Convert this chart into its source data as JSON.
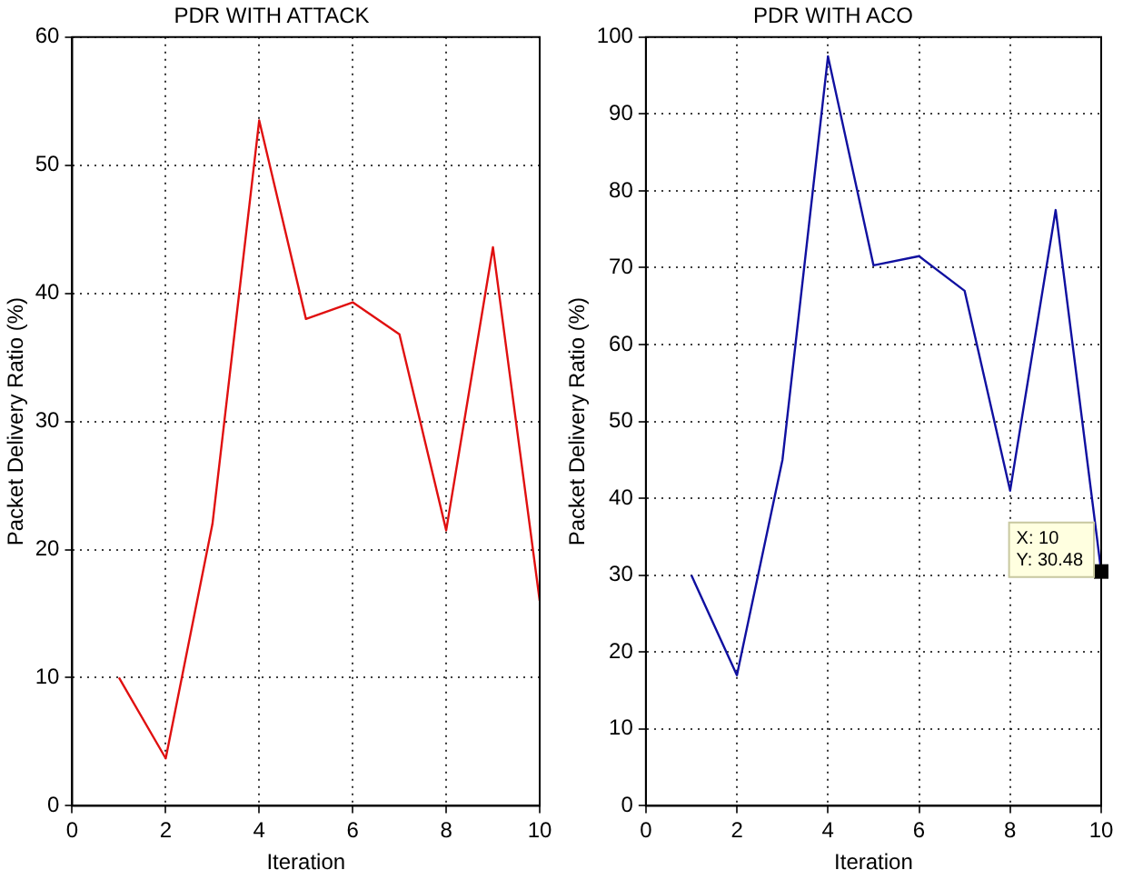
{
  "chart_data": [
    {
      "type": "line",
      "title": "PDR WITH ATTACK",
      "xlabel": "Iteration",
      "ylabel": "Packet Delivery Ratio (%)",
      "x": [
        1,
        2,
        3,
        4,
        5,
        6,
        7,
        8,
        9,
        10
      ],
      "series": [
        {
          "color": "#e01010",
          "values": [
            10,
            3.7,
            22,
            53.5,
            38,
            39.3,
            36.8,
            21.5,
            43.6,
            16
          ]
        }
      ],
      "xlim": [
        0,
        10
      ],
      "xticks": [
        0,
        2,
        4,
        6,
        8,
        10
      ],
      "ylim": [
        0,
        60
      ],
      "yticks": [
        0,
        10,
        20,
        30,
        40,
        50,
        60
      ],
      "grid": true,
      "legend": false,
      "marker": "none",
      "line_style": "solid"
    },
    {
      "type": "line",
      "title": "PDR WITH ACO",
      "xlabel": "Iteration",
      "ylabel": "Packet Delivery Ratio (%)",
      "x": [
        1,
        2,
        3,
        4,
        5,
        6,
        7,
        8,
        9,
        10
      ],
      "series": [
        {
          "color": "#1010a0",
          "values": [
            30,
            17,
            45,
            97.5,
            70.3,
            71.5,
            67,
            41,
            77.5,
            30.48
          ]
        }
      ],
      "xlim": [
        0,
        10
      ],
      "xticks": [
        0,
        2,
        4,
        6,
        8,
        10
      ],
      "ylim": [
        0,
        100
      ],
      "yticks": [
        0,
        10,
        20,
        30,
        40,
        50,
        60,
        70,
        80,
        90,
        100
      ],
      "grid": true,
      "legend": false,
      "marker": "none",
      "line_style": "solid",
      "annotations": [
        {
          "text": "X: 10\nY: 30.48",
          "x": 10,
          "y": 30.48
        }
      ]
    }
  ]
}
